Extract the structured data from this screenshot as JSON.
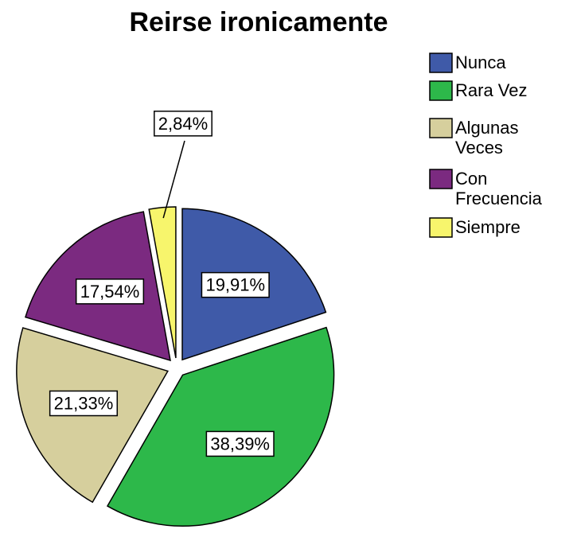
{
  "chart_data": {
    "type": "pie",
    "title": "Reirse ironicamente",
    "categories": [
      "Nunca",
      "Rara Vez",
      "Algunas Veces",
      "Con Frecuencia",
      "Siempre"
    ],
    "values": [
      19.91,
      38.39,
      21.33,
      17.54,
      2.84
    ],
    "value_labels": [
      "19,91%",
      "38,39%",
      "21,33%",
      "17,54%",
      "2,84%"
    ],
    "colors": [
      "#3f5aa8",
      "#2db84a",
      "#d6cf9d",
      "#7b2a80",
      "#f7f56c"
    ],
    "legend": "right"
  }
}
